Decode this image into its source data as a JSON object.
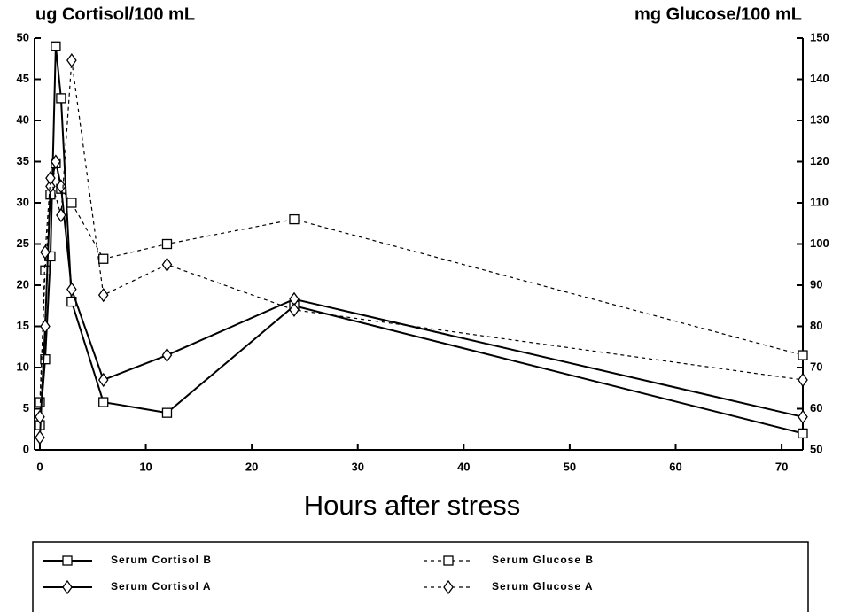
{
  "chart_data": {
    "type": "line",
    "ylabel": "ug Cortisol/100 mL",
    "y2label": "mg Glucose/100 mL",
    "xlabel": "Hours after stress",
    "xlim": [
      -0.5,
      72
    ],
    "xticks": [
      0,
      10,
      20,
      30,
      40,
      50,
      60,
      70
    ],
    "ylim": [
      0,
      50
    ],
    "yticks": [
      0,
      5,
      10,
      15,
      20,
      25,
      30,
      35,
      40,
      45,
      50
    ],
    "y2lim": [
      50,
      150
    ],
    "y2ticks": [
      50,
      60,
      70,
      80,
      90,
      100,
      110,
      120,
      130,
      140,
      150
    ],
    "series": [
      {
        "name": "Serum Cortisol B",
        "color": "#000000",
        "style": "solid",
        "marker": "square",
        "x": [
          0,
          0.5,
          1,
          1.5,
          2,
          3,
          6,
          12,
          24,
          72
        ],
        "values": [
          3,
          11,
          23.5,
          49,
          42.7,
          18,
          5.8,
          4.5,
          17.5,
          2
        ]
      },
      {
        "name": "Serum Glucose B",
        "color": "#000000",
        "style": "dashed",
        "marker": "square",
        "axis": "y2",
        "x": [
          0,
          0.5,
          1,
          1.5,
          2,
          3,
          6,
          12,
          24,
          72
        ],
        "values": [
          61.6,
          93.6,
          112,
          119.6,
          113.4,
          110,
          96.4,
          100,
          106,
          73
        ]
      },
      {
        "name": "Serum Cortisol A",
        "color": "#000000",
        "style": "solid",
        "marker": "diamond",
        "x": [
          0,
          0.5,
          1,
          1.5,
          2,
          3,
          6,
          12,
          24,
          72
        ],
        "values": [
          1.5,
          15,
          32,
          35,
          32,
          19.5,
          8.5,
          11.5,
          18.3,
          4
        ]
      },
      {
        "name": "Serum Glucose A",
        "color": "#000000",
        "style": "dashed",
        "marker": "diamond",
        "axis": "y2",
        "x": [
          0,
          0.5,
          1,
          2,
          3,
          6,
          12,
          24,
          72
        ],
        "values": [
          58,
          98,
          116,
          107,
          144.6,
          87.6,
          95,
          84,
          67
        ]
      }
    ]
  }
}
